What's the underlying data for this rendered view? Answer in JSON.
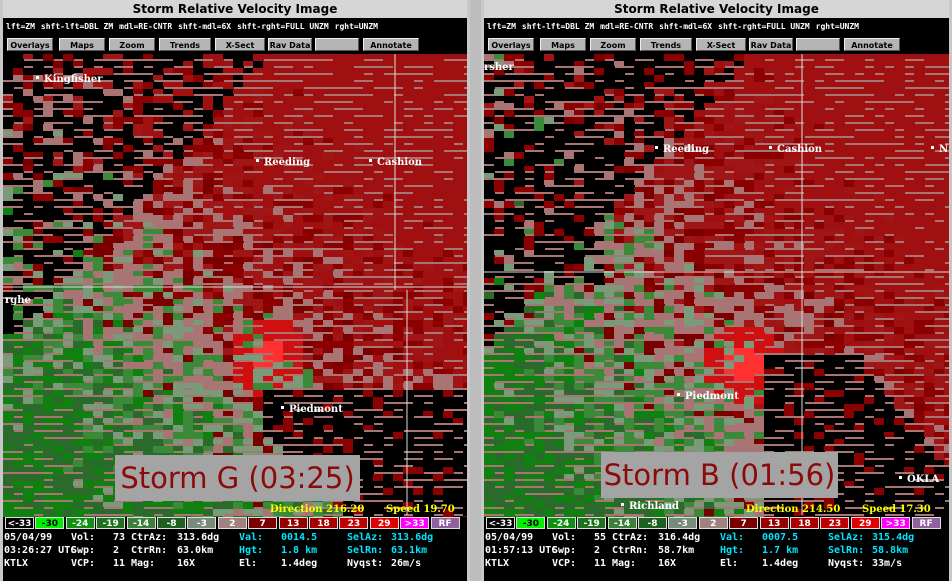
{
  "windows": [
    {
      "title": "Storm Relative Velocity Image",
      "mouse_help": [
        "lft=ZM",
        "shft-lft=DBL ZM",
        "mdl=RE-CNTR",
        "shft-mdl=6X",
        "shft-rght=FULL UNZM",
        "rght=UNZM"
      ],
      "buttons": [
        "Overlays",
        "Maps",
        "Zoom",
        "Trends",
        "X-Sect",
        "Rav Data",
        "Annotate"
      ],
      "places": [
        "Kingfisher",
        "Reeding",
        "Cashion",
        "Piedmont",
        "rghe"
      ],
      "storm_label": "Storm G (03:25)",
      "direction": "Direction 216.20",
      "speed": "Speed 19.70",
      "scale": [
        "<-33",
        "-30",
        "-24",
        "-19",
        "-14",
        "-8",
        "-3",
        "2",
        "7",
        "13",
        "18",
        "23",
        "29",
        ">33",
        "RF"
      ],
      "info": [
        [
          "05/04/99",
          "Vol:",
          "73",
          "CtrAz:",
          "313.6dg",
          "Val:",
          "0014.5",
          "SelAz:",
          "313.6dg"
        ],
        [
          "03:26:27 UTC",
          "Swp:",
          "2",
          "CtrRn:",
          "63.0km",
          "Hgt:",
          "1.8 km",
          "SelRn:",
          "63.1km"
        ],
        [
          "KTLX",
          "VCP:",
          "11",
          "Mag:",
          "16X",
          "El:",
          "1.4deg",
          "Nyqst:",
          "26m/s"
        ]
      ]
    },
    {
      "title": "Storm Relative Velocity Image",
      "mouse_help": [
        "lft=ZM",
        "shft-lft=DBL ZM",
        "mdl=RE-CNTR",
        "shft-mdl=6X",
        "shft-rght=FULL UNZM",
        "rght=UNZM"
      ],
      "buttons": [
        "Overlays",
        "Maps",
        "Zoom",
        "Trends",
        "X-Sect",
        "Rav Data",
        "Annotate"
      ],
      "places": [
        "Reeding",
        "Cashion",
        "N",
        "Piedmont",
        "OKLA",
        "Richland",
        "rsher"
      ],
      "storm_label": "Storm B (01:56)",
      "direction": "Direction 214.50",
      "speed": "Speed 17.30",
      "scale": [
        "<-33",
        "-30",
        "-24",
        "-19",
        "-14",
        "-8",
        "-3",
        "2",
        "7",
        "13",
        "18",
        "23",
        "29",
        ">33",
        "RF"
      ],
      "info": [
        [
          "05/04/99",
          "Vol:",
          "55",
          "CtrAz:",
          "316.4dg",
          "Val:",
          "0007.5",
          "SelAz:",
          "315.4dg"
        ],
        [
          "01:57:13 UTC",
          "Swp:",
          "2",
          "CtrRn:",
          "58.7km",
          "Hgt:",
          "1.7 km",
          "SelRn:",
          "58.8km"
        ],
        [
          "KTLX",
          "VCP:",
          "11",
          "Mag:",
          "16X",
          "El:",
          "1.4deg",
          "Nyqst:",
          "33m/s"
        ]
      ]
    }
  ]
}
